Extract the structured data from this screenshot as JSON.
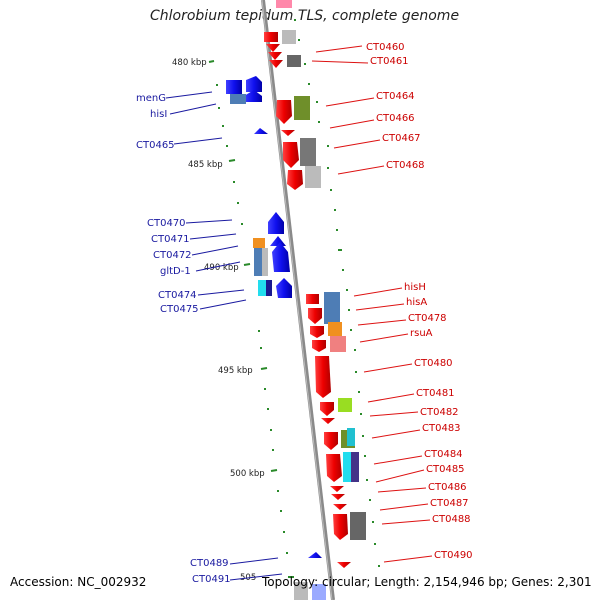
{
  "title": "Chlorobium tepidum TLS, complete genome",
  "accession": "Accession: NC_002932",
  "topology": "Topology: circular; Length: 2,154,946 bp; Genes: 2,301",
  "ruler": [
    {
      "label": "480 kbp",
      "kbp": 480
    },
    {
      "label": "485 kbp",
      "kbp": 485
    },
    {
      "label": "490 kbp",
      "kbp": 490
    },
    {
      "label": "495 kbp",
      "kbp": 495
    },
    {
      "label": "500 kbp",
      "kbp": 500
    },
    {
      "label": "505",
      "kbp": 505
    }
  ],
  "genes_right": [
    {
      "label": "CT0460"
    },
    {
      "label": "CT0461"
    },
    {
      "label": "CT0464"
    },
    {
      "label": "CT0466"
    },
    {
      "label": "CT0467"
    },
    {
      "label": "CT0468"
    },
    {
      "label": "hisH"
    },
    {
      "label": "hisA"
    },
    {
      "label": "CT0478"
    },
    {
      "label": "rsuA"
    },
    {
      "label": "CT0480"
    },
    {
      "label": "CT0481"
    },
    {
      "label": "CT0482"
    },
    {
      "label": "CT0483"
    },
    {
      "label": "CT0484"
    },
    {
      "label": "CT0485"
    },
    {
      "label": "CT0486"
    },
    {
      "label": "CT0487"
    },
    {
      "label": "CT0488"
    },
    {
      "label": "CT0490"
    }
  ],
  "genes_left": [
    {
      "label": "menG"
    },
    {
      "label": "hisI"
    },
    {
      "label": "CT0465"
    },
    {
      "label": "CT0470"
    },
    {
      "label": "CT0471"
    },
    {
      "label": "CT0472"
    },
    {
      "label": "gltD-1"
    },
    {
      "label": "CT0474"
    },
    {
      "label": "CT0475"
    },
    {
      "label": "CT0489"
    },
    {
      "label": "CT0491"
    }
  ],
  "colors": {
    "forward": "#ee1111",
    "reverse": "#1515e0",
    "backbone": "#888888"
  }
}
